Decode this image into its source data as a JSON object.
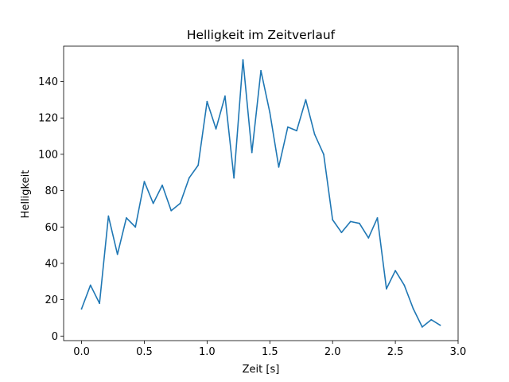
{
  "chart_data": {
    "type": "line",
    "title": "Helligkeit im Zeitverlauf",
    "xlabel": "Zeit [s]",
    "ylabel": "Helligkeit",
    "xlim": [
      -0.143,
      3.0
    ],
    "ylim": [
      -2.5,
      159.5
    ],
    "xticks": [
      0.0,
      0.5,
      1.0,
      1.5,
      2.0,
      2.5,
      3.0
    ],
    "xtick_labels": [
      "0.0",
      "0.5",
      "1.0",
      "1.5",
      "2.0",
      "2.5",
      "3.0"
    ],
    "yticks": [
      0,
      20,
      40,
      60,
      80,
      100,
      120,
      140
    ],
    "ytick_labels": [
      "0",
      "20",
      "40",
      "60",
      "80",
      "100",
      "120",
      "140"
    ],
    "grid": false,
    "legend": "none",
    "color": "#1f77b4",
    "series": [
      {
        "x": [
          0.0,
          0.071,
          0.143,
          0.214,
          0.286,
          0.357,
          0.429,
          0.5,
          0.571,
          0.643,
          0.714,
          0.786,
          0.857,
          0.929,
          1.0,
          1.071,
          1.143,
          1.214,
          1.286,
          1.357,
          1.429,
          1.5,
          1.571,
          1.643,
          1.714,
          1.786,
          1.857,
          1.929,
          2.0,
          2.071,
          2.143,
          2.214,
          2.286,
          2.357,
          2.429,
          2.5,
          2.571,
          2.643,
          2.714,
          2.786,
          2.857
        ],
        "values": [
          15,
          28,
          18,
          66,
          45,
          65,
          60,
          85,
          73,
          83,
          69,
          73,
          87,
          94,
          129,
          114,
          132,
          87,
          152,
          101,
          146,
          123,
          93,
          115,
          113,
          130,
          111,
          100,
          64,
          57,
          63,
          62,
          54,
          65,
          26,
          36,
          28,
          15,
          5,
          9,
          6
        ]
      }
    ]
  }
}
